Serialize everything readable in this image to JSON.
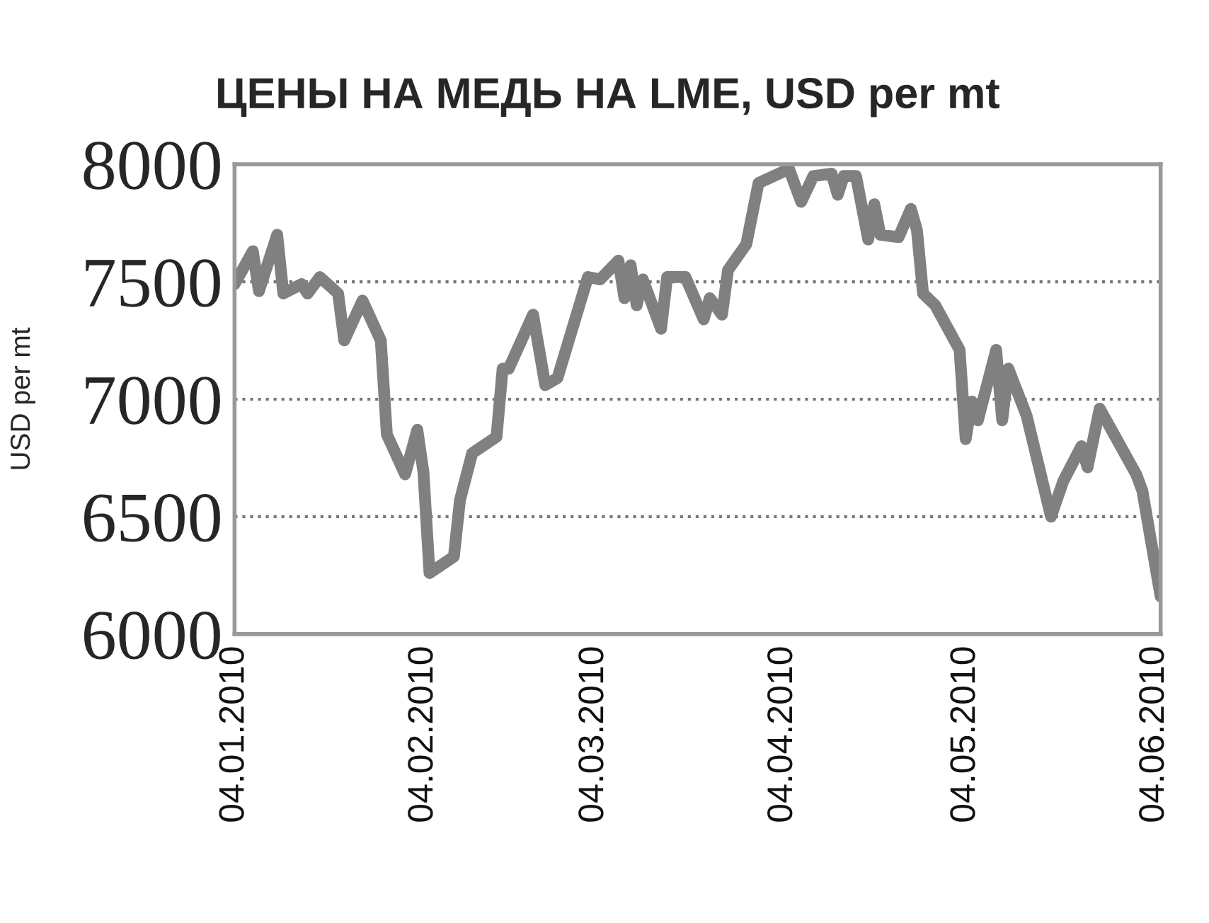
{
  "chart_data": {
    "type": "line",
    "title": "ЦЕНЫ НА МЕДЬ НА LME, USD per mt",
    "ylabel": "USD per mt",
    "x": [
      "2010-01-04",
      "2010-01-07",
      "2010-01-08",
      "2010-01-11",
      "2010-01-12",
      "2010-01-15",
      "2010-01-16",
      "2010-01-18",
      "2010-01-21",
      "2010-01-22",
      "2010-01-25",
      "2010-01-28",
      "2010-01-29",
      "2010-02-01",
      "2010-02-03",
      "2010-02-04",
      "2010-02-05",
      "2010-02-09",
      "2010-02-10",
      "2010-02-12",
      "2010-02-16",
      "2010-02-17",
      "2010-02-18",
      "2010-02-22",
      "2010-02-24",
      "2010-02-26",
      "2010-03-03",
      "2010-03-05",
      "2010-03-08",
      "2010-03-09",
      "2010-03-10",
      "2010-03-11",
      "2010-03-12",
      "2010-03-15",
      "2010-03-16",
      "2010-03-19",
      "2010-03-22",
      "2010-03-23",
      "2010-03-25",
      "2010-03-26",
      "2010-03-29",
      "2010-03-31",
      "2010-04-05",
      "2010-04-07",
      "2010-04-09",
      "2010-04-12",
      "2010-04-13",
      "2010-04-14",
      "2010-04-16",
      "2010-04-18",
      "2010-04-19",
      "2010-04-20",
      "2010-04-23",
      "2010-04-25",
      "2010-04-26",
      "2010-04-27",
      "2010-04-29",
      "2010-05-03",
      "2010-05-04",
      "2010-05-05",
      "2010-05-06",
      "2010-05-09",
      "2010-05-10",
      "2010-05-11",
      "2010-05-14",
      "2010-05-18",
      "2010-05-20",
      "2010-05-23",
      "2010-05-24",
      "2010-05-26",
      "2010-06-01",
      "2010-06-02",
      "2010-06-05"
    ],
    "series": [
      {
        "color": "#808080",
        "values": [
          7490,
          7630,
          7460,
          7700,
          7450,
          7490,
          7450,
          7520,
          7450,
          7250,
          7420,
          7250,
          6850,
          6680,
          6870,
          6690,
          6260,
          6330,
          6570,
          6770,
          6840,
          7130,
          7130,
          7360,
          7060,
          7090,
          7520,
          7510,
          7590,
          7430,
          7570,
          7400,
          7510,
          7300,
          7520,
          7520,
          7340,
          7430,
          7360,
          7550,
          7660,
          7920,
          7980,
          7840,
          7950,
          7960,
          7870,
          7950,
          7950,
          7680,
          7830,
          7700,
          7690,
          7810,
          7720,
          7450,
          7400,
          7210,
          6830,
          6990,
          6910,
          7210,
          6910,
          7130,
          6930,
          6500,
          6650,
          6800,
          6710,
          6960,
          6680,
          6610,
          6160
        ]
      }
    ],
    "ylim": [
      6000,
      8000
    ],
    "yticks": [
      6000,
      6500,
      7000,
      7500,
      8000
    ],
    "xlim": [
      "2010-01-04",
      "2010-06-05"
    ],
    "xticks": [
      {
        "value": "2010-01-04",
        "label": "04.01.2010"
      },
      {
        "value": "2010-02-04",
        "label": "04.02.2010"
      },
      {
        "value": "2010-03-04",
        "label": "04.03.2010"
      },
      {
        "value": "2010-04-04",
        "label": "04.04.2010"
      },
      {
        "value": "2010-05-04",
        "label": "04.05.2010"
      },
      {
        "value": "2010-06-04",
        "label": "04.06.2010"
      }
    ],
    "grid": "y",
    "line_style": "solid",
    "marker": "none"
  }
}
